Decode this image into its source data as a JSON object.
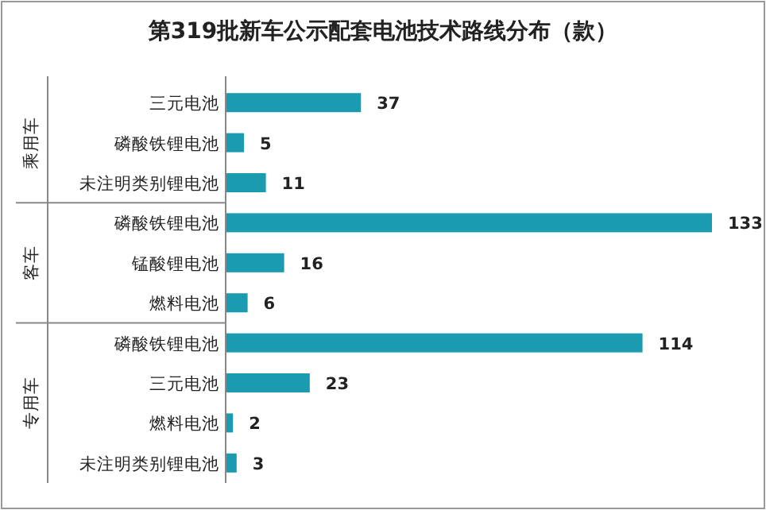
{
  "chart_data": {
    "type": "bar",
    "orientation": "horizontal",
    "title": "第319批新车公示配套电池技术路线分布（款）",
    "categories": [
      "三元电池",
      "磷酸铁锂电池",
      "未注明类别锂电池",
      "磷酸铁锂电池",
      "锰酸锂电池",
      "燃料电池",
      "磷酸铁锂电池",
      "三元电池",
      "燃料电池",
      "未注明类别锂电池"
    ],
    "values": [
      37,
      5,
      11,
      133,
      16,
      6,
      114,
      23,
      2,
      3
    ],
    "color": "#1a9bb0",
    "data_labels": true,
    "annotations": [
      "乘用车",
      "客车",
      "专用车"
    ]
  }
}
